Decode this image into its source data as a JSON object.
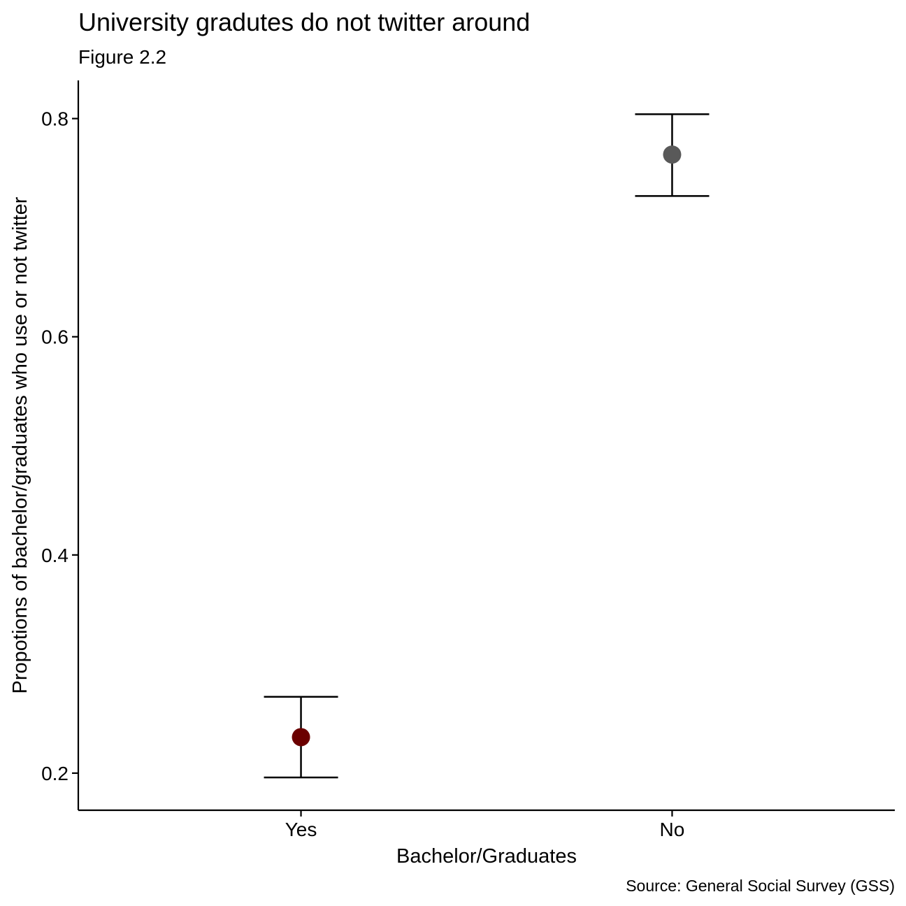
{
  "chart_data": {
    "type": "scatter",
    "title": "University gradutes do not twitter around",
    "subtitle": "Figure 2.2",
    "caption": "Source: General Social Survey (GSS)",
    "xlabel": "Bachelor/Graduates",
    "ylabel": "Propotions of bachelor/graduates who use or not twitter",
    "categories": [
      "Yes",
      "No"
    ],
    "series": [
      {
        "values": [
          0.233,
          0.767
        ],
        "lower": [
          0.196,
          0.729
        ],
        "upper": [
          0.27,
          0.804
        ],
        "colors": [
          "#6b0000",
          "#595959"
        ]
      }
    ],
    "yticks": [
      0.2,
      0.4,
      0.6,
      0.8
    ],
    "ytick_labels": [
      "0.2",
      "0.4",
      "0.6",
      "0.8"
    ],
    "ylim": [
      0.166,
      0.835
    ],
    "grid": false,
    "legend": "none"
  }
}
